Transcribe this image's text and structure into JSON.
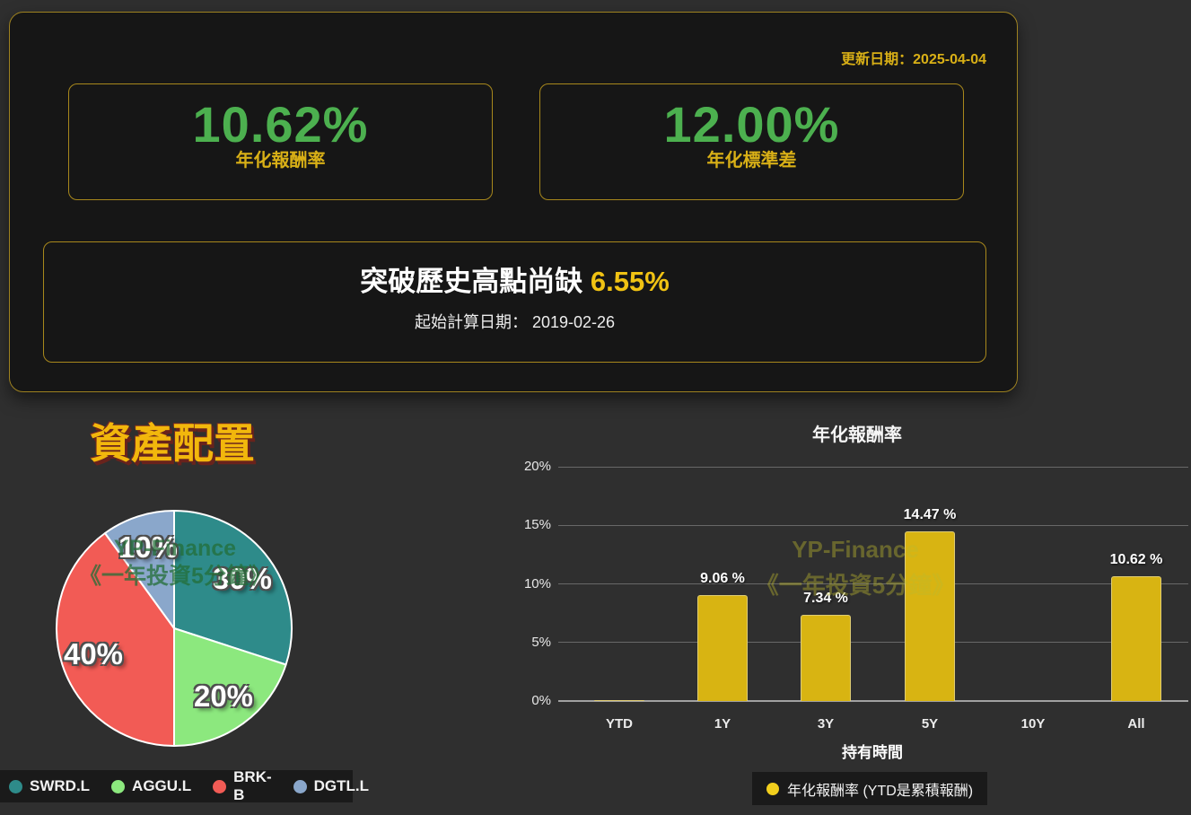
{
  "summary": {
    "update_date": "更新日期：2025-04-04",
    "metrics": [
      {
        "value": "10.62%",
        "label": "年化報酬率",
        "value_color": "#4cb04f"
      },
      {
        "value": "12.00%",
        "label": "年化標準差",
        "value_color": "#4cb04f"
      }
    ],
    "highlight": {
      "prefix": "突破歷史高點尚缺 ",
      "value": "6.55%",
      "subtitle": "起始計算日期： 2019-02-26"
    }
  },
  "watermark": {
    "line1": "YP-Finance",
    "line2": "《一年投資5分鐘》"
  },
  "chart_data": [
    {
      "type": "pie",
      "title": "資產配置",
      "labels": [
        "SWRD.L",
        "AGGU.L",
        "BRK-B",
        "DGTL.L"
      ],
      "values": [
        30,
        20,
        40,
        10
      ],
      "slice_labels": [
        "30%",
        "20%",
        "40%",
        "10%"
      ],
      "colors": [
        "#2e8b8a",
        "#8ce87e",
        "#f25b55",
        "#8aa7cb"
      ],
      "unit": "%",
      "legend_position": "bottom-left"
    },
    {
      "type": "bar",
      "title": "年化報酬率",
      "categories": [
        "YTD",
        "1Y",
        "3Y",
        "5Y",
        "10Y",
        "All"
      ],
      "values": [
        0.1,
        9.06,
        7.34,
        14.47,
        null,
        10.62
      ],
      "value_labels": [
        "",
        "9.06 %",
        "7.34 %",
        "14.47 %",
        "",
        "10.62 %"
      ],
      "xlabel": "持有時間",
      "ylim": [
        0,
        20
      ],
      "yticks": [
        "0%",
        "5%",
        "10%",
        "15%",
        "20%"
      ],
      "bar_color": "#d8b412",
      "legend": "年化報酬率 (YTD是累積報酬)",
      "legend_dot_color": "#f2cf1d",
      "grid": true,
      "legend_position": "bottom"
    }
  ],
  "colors": {
    "page_bg": "#2f2f2f",
    "panel_bg": "#161616",
    "border_gold": "#9e8220",
    "accent_gold": "#d9b016",
    "bright_gold": "#f0c213",
    "value_green": "#4cb04f",
    "legend_bg": "#1a1a1a",
    "text": "#f5f5f5"
  }
}
